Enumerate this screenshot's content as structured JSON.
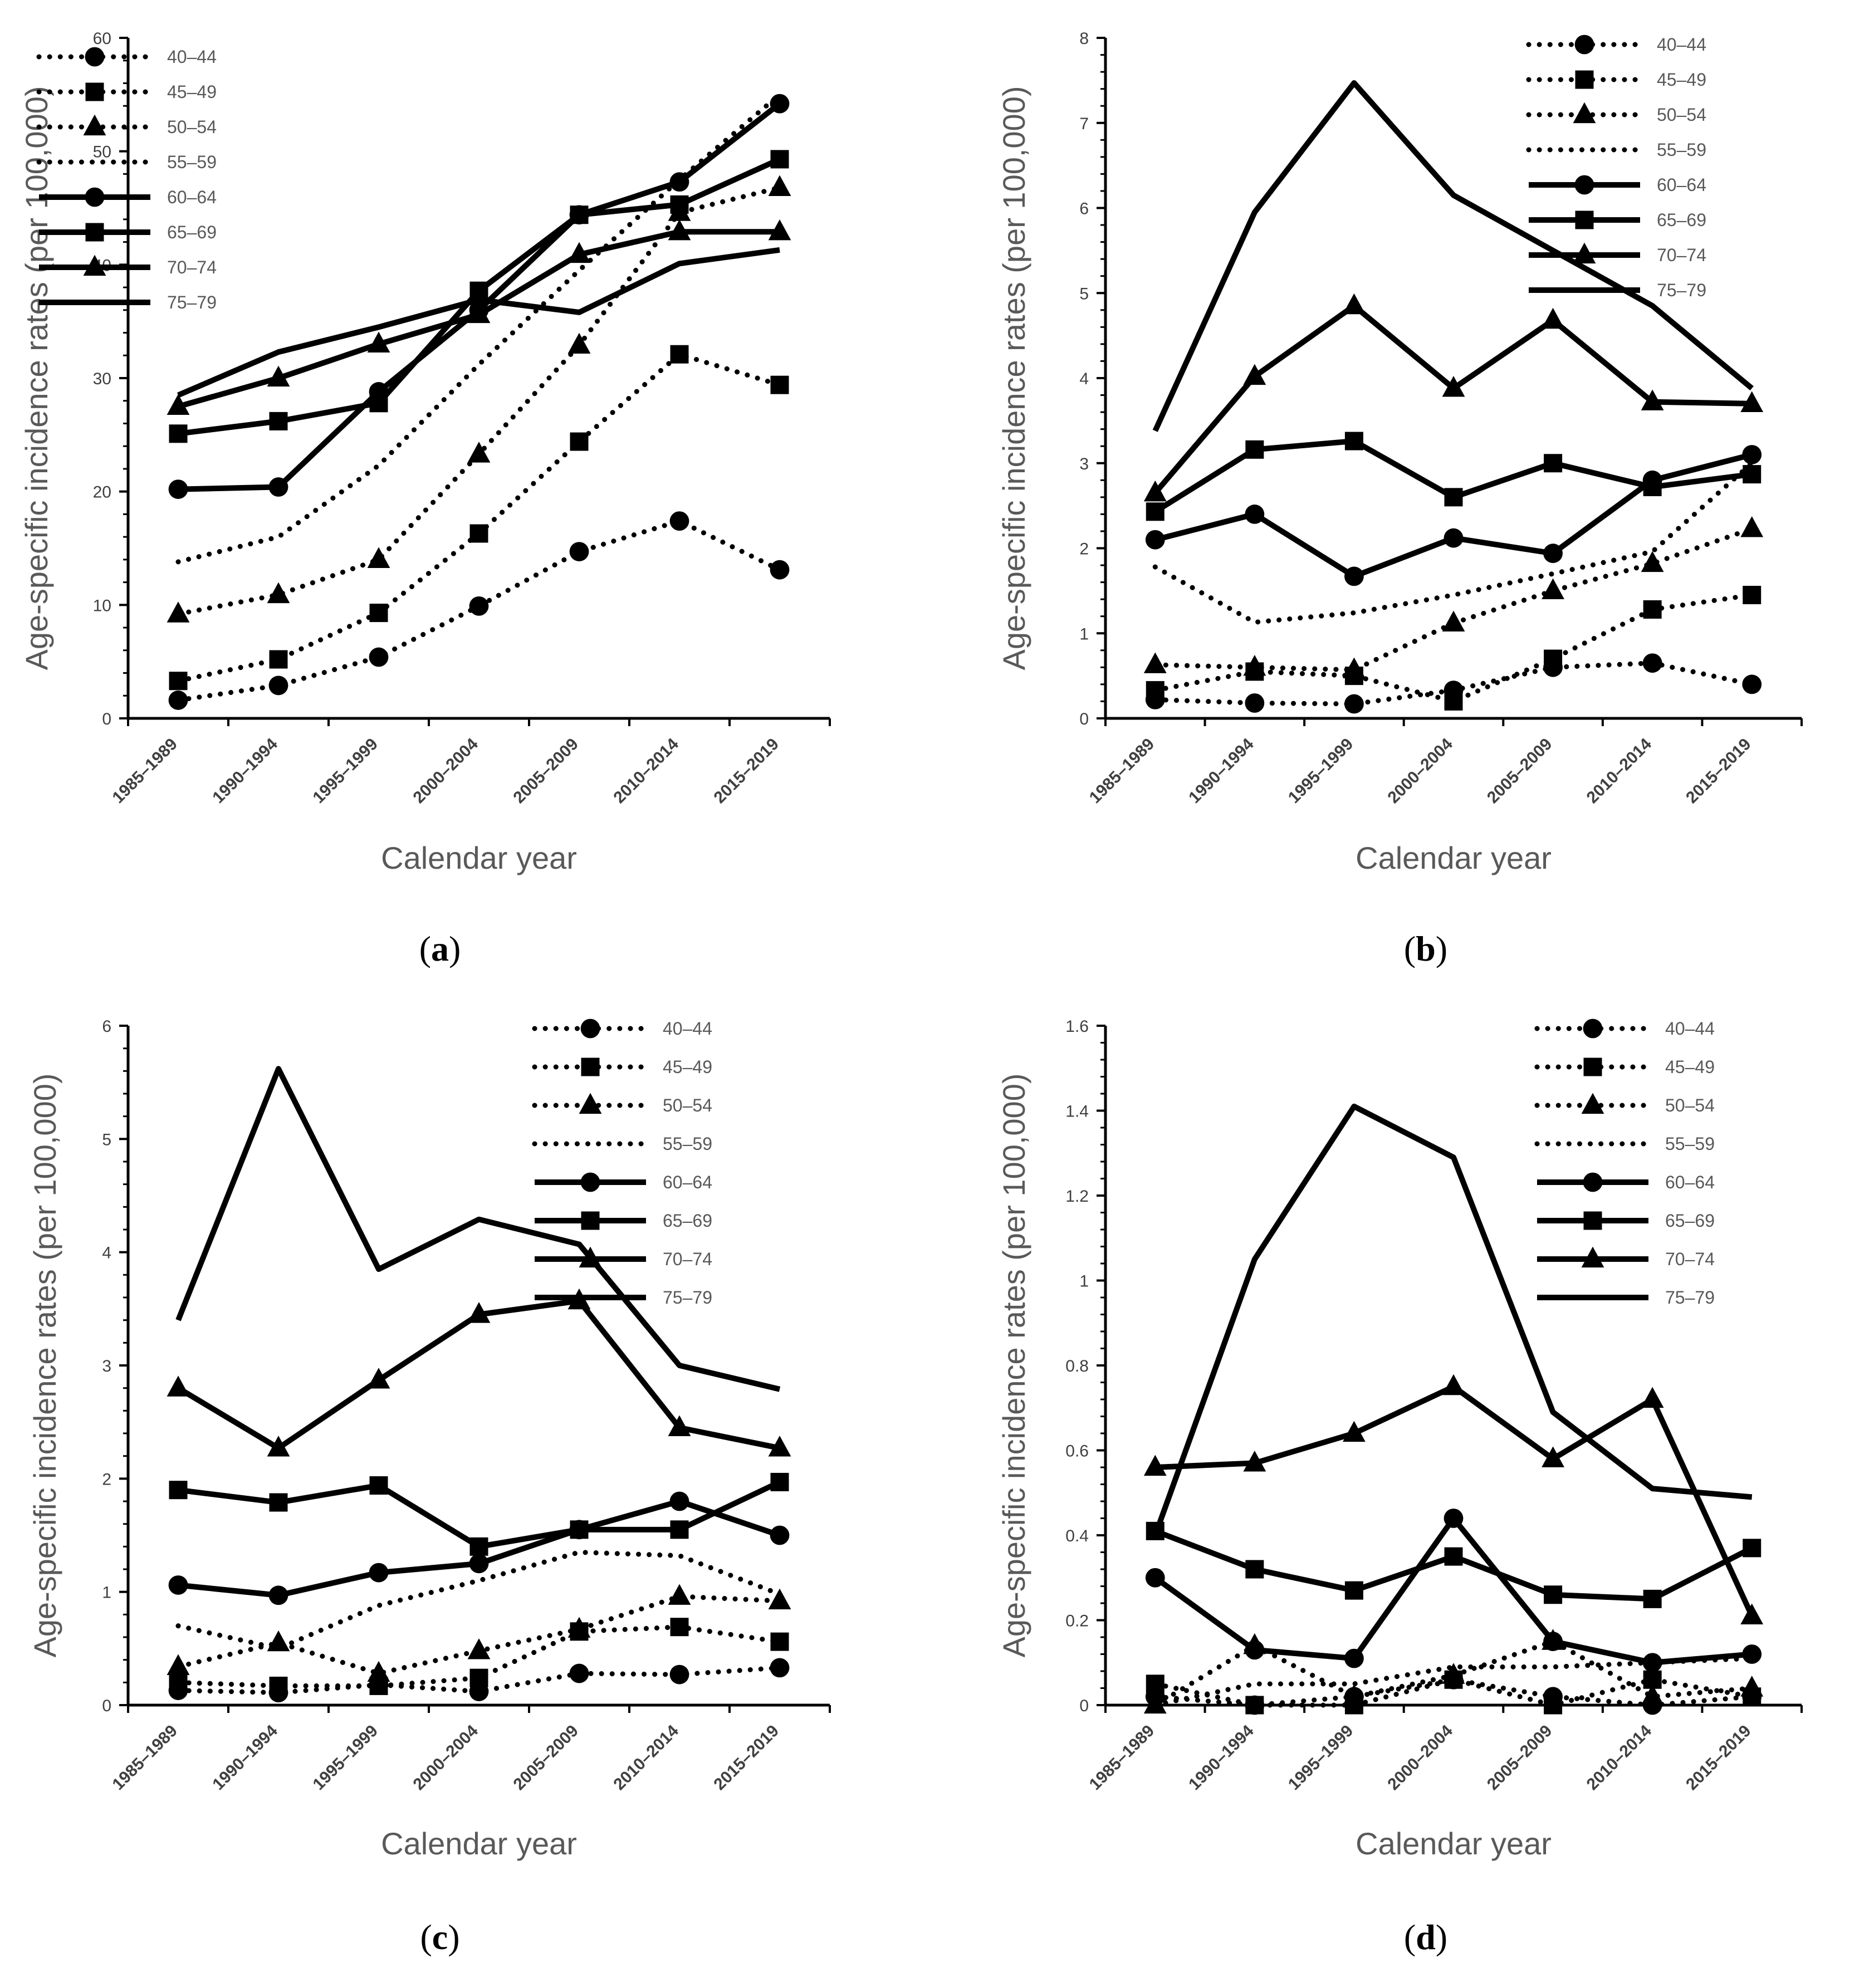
{
  "chart_data": [
    {
      "type": "line",
      "panel_label": "a",
      "panel_label_text": "(a)",
      "xlabel": "Calendar year",
      "ylabel": "Age-specific incidence rates (per 100,000)",
      "categories": [
        "1985–1989",
        "1990–1994",
        "1995–1999",
        "2000–2004",
        "2005–2009",
        "2010–2014",
        "2015–2019"
      ],
      "ylim": [
        0,
        60
      ],
      "yticks": [
        0,
        10,
        20,
        30,
        40,
        50,
        60
      ],
      "ytick_labels": [
        "0",
        "10",
        "20",
        "30",
        "40",
        "50",
        "60"
      ],
      "legend_position": "top-left",
      "series": [
        {
          "name": "40–44",
          "line": "dotted",
          "marker": "circle",
          "values": [
            1.6,
            2.9,
            5.4,
            9.9,
            14.7,
            17.4,
            13.1
          ]
        },
        {
          "name": "45–49",
          "line": "dotted",
          "marker": "square",
          "values": [
            3.3,
            5.2,
            9.3,
            16.3,
            24.4,
            32.1,
            29.4
          ]
        },
        {
          "name": "50–54",
          "line": "dotted",
          "marker": "triangle",
          "values": [
            9.2,
            10.9,
            14.0,
            23.3,
            32.9,
            44.6,
            46.8
          ]
        },
        {
          "name": "55–59",
          "line": "dotted",
          "marker": "none",
          "values": [
            13.8,
            16.0,
            22.3,
            31.2,
            39.5,
            47.5,
            55.0
          ]
        },
        {
          "name": "60–64",
          "line": "solid",
          "marker": "circle",
          "values": [
            20.2,
            20.4,
            28.8,
            36.0,
            44.4,
            47.3,
            54.2
          ]
        },
        {
          "name": "65–69",
          "line": "solid",
          "marker": "square",
          "values": [
            25.1,
            26.2,
            27.8,
            37.7,
            44.4,
            45.3,
            49.3
          ]
        },
        {
          "name": "70–74",
          "line": "solid",
          "marker": "triangle",
          "values": [
            27.5,
            30.0,
            33.0,
            35.6,
            40.9,
            42.9,
            42.9
          ]
        },
        {
          "name": "75–79",
          "line": "solid",
          "marker": "none",
          "values": [
            28.5,
            32.3,
            34.5,
            36.9,
            35.8,
            40.1,
            41.3
          ]
        }
      ]
    },
    {
      "type": "line",
      "panel_label": "b",
      "panel_label_text": "(b)",
      "xlabel": "Calendar year",
      "ylabel": "Age-specific  incidence rates (per 100,000)",
      "categories": [
        "1985–1989",
        "1990–1994",
        "1995–1999",
        "2000–2004",
        "2005–2009",
        "2010–2014",
        "2015–2019"
      ],
      "ylim": [
        0,
        8
      ],
      "yticks": [
        0,
        1,
        2,
        3,
        4,
        5,
        6,
        7,
        8
      ],
      "ytick_labels": [
        "0",
        "1",
        "2",
        "3",
        "4",
        "5",
        "6",
        "7",
        "8"
      ],
      "legend_position": "top-right",
      "series": [
        {
          "name": "40–44",
          "line": "dotted",
          "marker": "circle",
          "values": [
            0.22,
            0.18,
            0.17,
            0.33,
            0.6,
            0.65,
            0.4
          ]
        },
        {
          "name": "45–49",
          "line": "dotted",
          "marker": "square",
          "values": [
            0.33,
            0.55,
            0.5,
            0.2,
            0.7,
            1.28,
            1.45
          ]
        },
        {
          "name": "50–54",
          "line": "dotted",
          "marker": "triangle",
          "values": [
            0.63,
            0.6,
            0.57,
            1.12,
            1.5,
            1.82,
            2.23
          ]
        },
        {
          "name": "55–59",
          "line": "dotted",
          "marker": "none",
          "values": [
            1.78,
            1.13,
            1.24,
            1.45,
            1.7,
            1.96,
            3.0
          ]
        },
        {
          "name": "60–64",
          "line": "solid",
          "marker": "circle",
          "values": [
            2.1,
            2.4,
            1.67,
            2.12,
            1.94,
            2.8,
            3.1
          ]
        },
        {
          "name": "65–69",
          "line": "solid",
          "marker": "square",
          "values": [
            2.43,
            3.16,
            3.26,
            2.6,
            3.0,
            2.72,
            2.87
          ]
        },
        {
          "name": "70–74",
          "line": "solid",
          "marker": "triangle",
          "values": [
            2.65,
            4.02,
            4.85,
            3.88,
            4.68,
            3.72,
            3.7
          ]
        },
        {
          "name": "75–79",
          "line": "solid",
          "marker": "none",
          "values": [
            3.38,
            5.95,
            7.47,
            6.15,
            5.5,
            4.85,
            3.88
          ]
        }
      ]
    },
    {
      "type": "line",
      "panel_label": "c",
      "panel_label_text": "(c)",
      "xlabel": "Calendar year",
      "ylabel": "Age-specific incidence rates (per 100,000)",
      "categories": [
        "1985–1989",
        "1990–1994",
        "1995–1999",
        "2000–2004",
        "2005–2009",
        "2010–2014",
        "2015–2019"
      ],
      "ylim": [
        0,
        6
      ],
      "yticks": [
        0,
        1,
        2,
        3,
        4,
        5,
        6
      ],
      "ytick_labels": [
        "0",
        "1",
        "2",
        "3",
        "4",
        "5",
        "6"
      ],
      "legend_position": "top-right",
      "series": [
        {
          "name": "40–44",
          "line": "dotted",
          "marker": "circle",
          "values": [
            0.13,
            0.11,
            0.18,
            0.12,
            0.28,
            0.27,
            0.33
          ]
        },
        {
          "name": "45–49",
          "line": "dotted",
          "marker": "square",
          "values": [
            0.2,
            0.17,
            0.17,
            0.24,
            0.65,
            0.69,
            0.56
          ]
        },
        {
          "name": "50–54",
          "line": "dotted",
          "marker": "triangle",
          "values": [
            0.34,
            0.55,
            0.28,
            0.48,
            0.67,
            0.96,
            0.92
          ]
        },
        {
          "name": "55–59",
          "line": "dotted",
          "marker": "none",
          "values": [
            0.7,
            0.5,
            0.88,
            1.1,
            1.35,
            1.32,
            0.98
          ]
        },
        {
          "name": "60–64",
          "line": "solid",
          "marker": "circle",
          "values": [
            1.06,
            0.97,
            1.17,
            1.25,
            1.55,
            1.8,
            1.5
          ]
        },
        {
          "name": "65–69",
          "line": "solid",
          "marker": "square",
          "values": [
            1.9,
            1.79,
            1.94,
            1.4,
            1.55,
            1.55,
            1.97
          ]
        },
        {
          "name": "70–74",
          "line": "solid",
          "marker": "triangle",
          "values": [
            2.8,
            2.27,
            2.87,
            3.45,
            3.57,
            2.45,
            2.27
          ]
        },
        {
          "name": "75–79",
          "line": "solid",
          "marker": "none",
          "values": [
            3.4,
            5.62,
            3.85,
            4.29,
            4.07,
            3.0,
            2.79
          ]
        }
      ]
    },
    {
      "type": "line",
      "panel_label": "d",
      "panel_label_text": "(d)",
      "xlabel": "Calendar year",
      "ylabel": "Age-specific  incidence rates (per 100,000)",
      "categories": [
        "1985–1989",
        "1990–1994",
        "1995–1999",
        "2000–2004",
        "2005–2009",
        "2010–2014",
        "2015–2019"
      ],
      "ylim": [
        0,
        1.6
      ],
      "yticks": [
        0,
        0.2,
        0.4,
        0.6,
        0.8,
        1.0,
        1.2,
        1.4,
        1.6
      ],
      "ytick_labels": [
        "0",
        "0.2",
        "0.4",
        "0.6",
        "0.8",
        "1",
        "1.2",
        "1.4",
        "1.6"
      ],
      "legend_position": "top-right",
      "series": [
        {
          "name": "40–44",
          "line": "dotted",
          "marker": "circle",
          "values": [
            0.02,
            0.0,
            0.02,
            0.06,
            0.02,
            0.0,
            0.02
          ]
        },
        {
          "name": "45–49",
          "line": "dotted",
          "marker": "square",
          "values": [
            0.05,
            0.0,
            0.0,
            0.06,
            0.0,
            0.06,
            0.02
          ]
        },
        {
          "name": "50–54",
          "line": "dotted",
          "marker": "triangle",
          "values": [
            0.0,
            0.14,
            0.02,
            0.07,
            0.15,
            0.02,
            0.04
          ]
        },
        {
          "name": "55–59",
          "line": "dotted",
          "marker": "none",
          "values": [
            0.0,
            0.05,
            0.05,
            0.09,
            0.09,
            0.1,
            0.11
          ]
        },
        {
          "name": "60–64",
          "line": "solid",
          "marker": "circle",
          "values": [
            0.3,
            0.13,
            0.11,
            0.44,
            0.15,
            0.1,
            0.12
          ]
        },
        {
          "name": "65–69",
          "line": "solid",
          "marker": "square",
          "values": [
            0.41,
            0.32,
            0.27,
            0.35,
            0.26,
            0.25,
            0.37
          ]
        },
        {
          "name": "70–74",
          "line": "solid",
          "marker": "triangle",
          "values": [
            0.56,
            0.57,
            0.64,
            0.75,
            0.58,
            0.72,
            0.21
          ]
        },
        {
          "name": "75–79",
          "line": "solid",
          "marker": "none",
          "values": [
            0.4,
            1.05,
            1.41,
            1.29,
            0.69,
            0.51,
            0.49
          ]
        }
      ]
    }
  ]
}
